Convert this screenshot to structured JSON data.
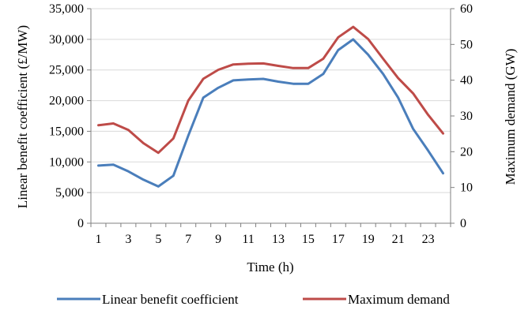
{
  "chart_data": {
    "type": "line",
    "x": [
      1,
      2,
      3,
      4,
      5,
      6,
      7,
      8,
      9,
      10,
      11,
      12,
      13,
      14,
      15,
      16,
      17,
      18,
      19,
      20,
      21,
      22,
      23,
      24
    ],
    "x_tick_labels": [
      "1",
      "3",
      "5",
      "7",
      "9",
      "11",
      "13",
      "15",
      "17",
      "19",
      "21",
      "23"
    ],
    "xlabel": "Time (h)",
    "y_left": {
      "label": "Linear benefit coefficient (£/MW)",
      "range": [
        0,
        35000
      ],
      "tick_labels": [
        "0",
        "5,000",
        "10,000",
        "15,000",
        "20,000",
        "25,000",
        "30,000",
        "35,000"
      ]
    },
    "y_right": {
      "label": "Maximum demand (GW)",
      "range": [
        0,
        60
      ],
      "tick_labels": [
        "0",
        "10",
        "20",
        "30",
        "40",
        "50",
        "60"
      ]
    },
    "grid": true,
    "legend_position": "bottom",
    "series": [
      {
        "name": "Linear benefit coefficient",
        "axis": "left",
        "color": "#4a7ebb",
        "values": [
          9400,
          9550,
          8450,
          7100,
          6000,
          7750,
          14300,
          20500,
          22100,
          23300,
          23450,
          23550,
          23100,
          22750,
          22750,
          24350,
          28250,
          30000,
          27500,
          24350,
          20500,
          15400,
          11850,
          8150
        ]
      },
      {
        "name": "Maximum demand",
        "axis": "right",
        "color": "#be4b48",
        "values": [
          27.4,
          27.9,
          26.1,
          22.4,
          19.7,
          23.7,
          34.3,
          40.4,
          42.9,
          44.4,
          44.6,
          44.7,
          44.0,
          43.4,
          43.4,
          46.0,
          52.0,
          54.9,
          51.5,
          46.0,
          40.6,
          36.3,
          30.3,
          25.1
        ]
      }
    ]
  }
}
